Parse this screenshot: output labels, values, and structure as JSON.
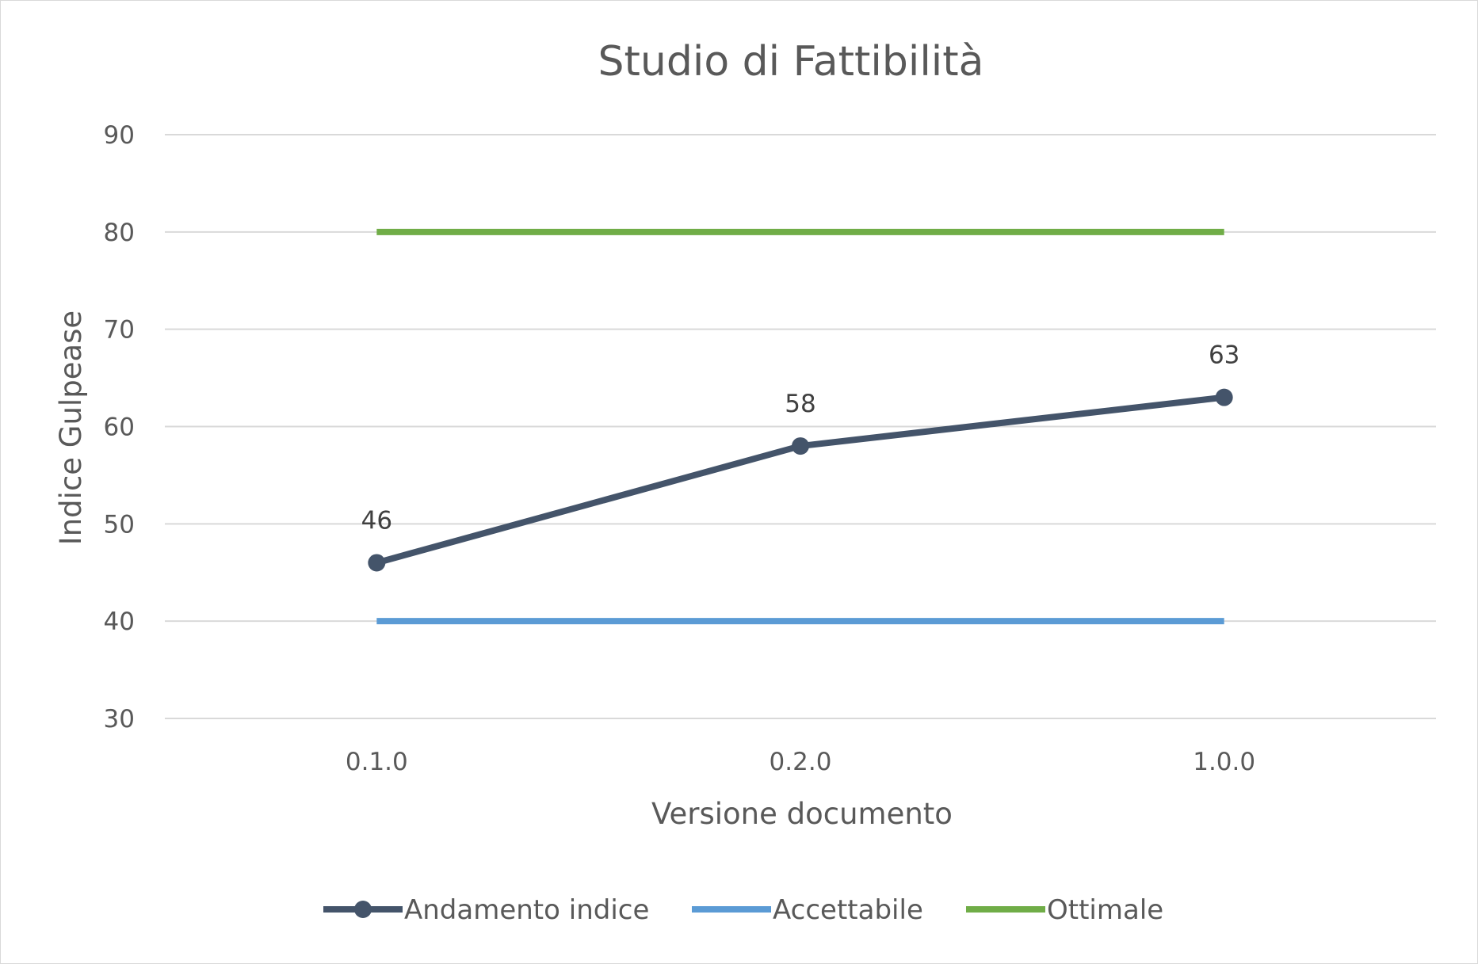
{
  "chart_data": {
    "type": "line",
    "title": "Studio di Fattibilità",
    "xlabel": "Versione documento",
    "ylabel": "Indice Gulpease",
    "categories": [
      "0.1.0",
      "0.2.0",
      "1.0.0"
    ],
    "ylim": [
      30,
      90
    ],
    "yticks": [
      30,
      40,
      50,
      60,
      70,
      80,
      90
    ],
    "grid": true,
    "legend_position": "bottom",
    "series": [
      {
        "name": "Andamento indice",
        "values": [
          46,
          58,
          63
        ],
        "color": "#44546a",
        "markers": true,
        "data_labels": [
          "46",
          "58",
          "63"
        ]
      },
      {
        "name": "Accettabile",
        "values": [
          40,
          40,
          40
        ],
        "color": "#5b9bd5",
        "markers": false
      },
      {
        "name": "Ottimale",
        "values": [
          80,
          80,
          80
        ],
        "color": "#70ad47",
        "markers": false
      }
    ]
  }
}
